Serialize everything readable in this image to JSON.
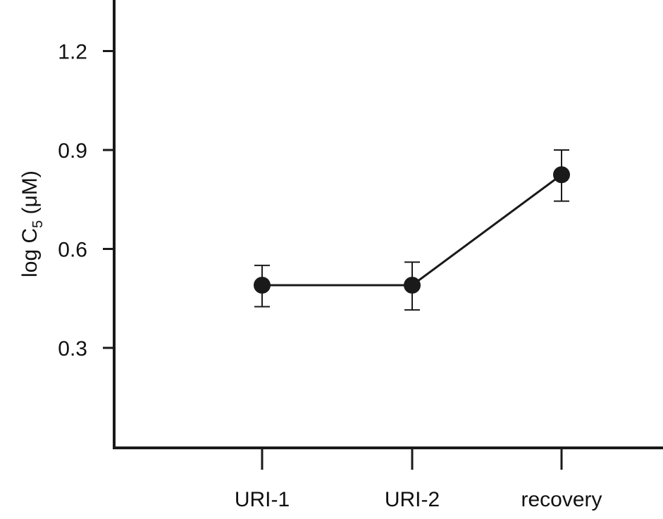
{
  "chart_data": {
    "type": "line",
    "categories": [
      "URI-1",
      "URI-2",
      "recovery"
    ],
    "series": [
      {
        "values": [
          0.49,
          0.49,
          0.825
        ],
        "error_low": [
          0.425,
          0.415,
          0.745
        ],
        "error_high": [
          0.55,
          0.56,
          0.9
        ],
        "color": "#1a1a1a"
      }
    ],
    "ylabel_main": "log C",
    "ylabel_sub": "5",
    "ylabel_unit": " (μM)",
    "ylim": [
      0,
      1.35
    ],
    "yticks": [
      0.3,
      0.6,
      0.9,
      1.2
    ],
    "ytick_labels": [
      "0.3",
      "0.6",
      "0.9",
      "1.2"
    ],
    "grid": false,
    "legend": "none"
  }
}
